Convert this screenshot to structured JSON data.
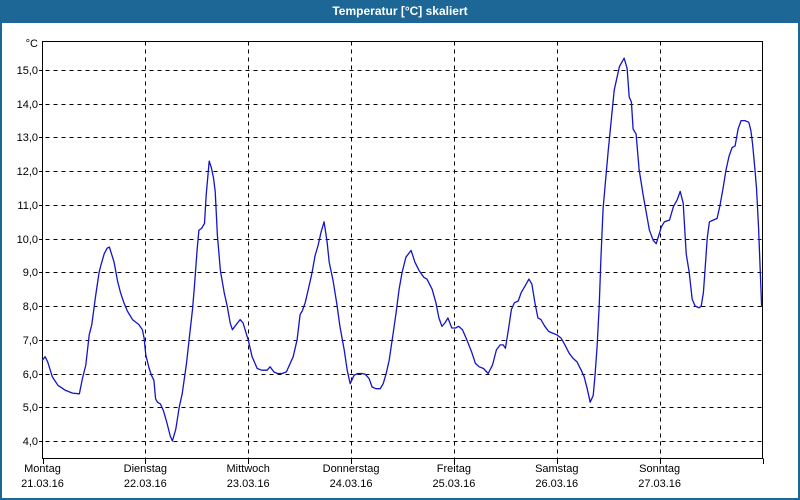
{
  "window": {
    "title": "Temperatur [°C] skaliert",
    "frame_color": "#1c6796",
    "title_text_color": "#ffffff",
    "background_color": "#ffffff"
  },
  "chart_data": {
    "type": "line",
    "title": "Temperatur [°C] skaliert",
    "ylabel": "°C",
    "unit_label": "°C",
    "ylim": [
      4.0,
      15.0
    ],
    "y_tick_step": 1.0,
    "xlim_hours": [
      0,
      168
    ],
    "grid": "dashed-black",
    "legend": "none",
    "line_color": "#1414c8",
    "grid_color": "#000000",
    "text_color": "#000000",
    "y_ticks": [
      {
        "v": 15,
        "label": "15,0"
      },
      {
        "v": 14,
        "label": "14,0"
      },
      {
        "v": 13,
        "label": "13,0"
      },
      {
        "v": 12,
        "label": "12,0"
      },
      {
        "v": 11,
        "label": "11,0"
      },
      {
        "v": 10,
        "label": "10,0"
      },
      {
        "v": 9,
        "label": "9,0"
      },
      {
        "v": 8,
        "label": "8,0"
      },
      {
        "v": 7,
        "label": "7,0"
      },
      {
        "v": 6,
        "label": "6,0"
      },
      {
        "v": 5,
        "label": "5,0"
      },
      {
        "v": 4,
        "label": "4,0"
      }
    ],
    "x_days": [
      {
        "name": "Montag",
        "date": "21.03.16"
      },
      {
        "name": "Dienstag",
        "date": "22.03.16"
      },
      {
        "name": "Mittwoch",
        "date": "23.03.16"
      },
      {
        "name": "Donnerstag",
        "date": "24.03.16"
      },
      {
        "name": "Freitag",
        "date": "25.03.16"
      },
      {
        "name": "Samstag",
        "date": "26.03.16"
      },
      {
        "name": "Sonntag",
        "date": "27.03.16"
      }
    ],
    "series": [
      {
        "name": "Temperatur [°C]",
        "points": [
          [
            0,
            6.4
          ],
          [
            0.6,
            6.5
          ],
          [
            1.2,
            6.35
          ],
          [
            2.3,
            5.9
          ],
          [
            3.6,
            5.65
          ],
          [
            5.4,
            5.5
          ],
          [
            7,
            5.42
          ],
          [
            8.6,
            5.4
          ],
          [
            9.3,
            5.85
          ],
          [
            10.1,
            6.25
          ],
          [
            10.5,
            6.7
          ],
          [
            10.9,
            7.15
          ],
          [
            11.5,
            7.45
          ],
          [
            12.4,
            8.3
          ],
          [
            13.2,
            9.0
          ],
          [
            13.6,
            9.2
          ],
          [
            14.4,
            9.55
          ],
          [
            15.1,
            9.72
          ],
          [
            15.6,
            9.75
          ],
          [
            16.7,
            9.3
          ],
          [
            17.5,
            8.75
          ],
          [
            18.2,
            8.4
          ],
          [
            19,
            8.1
          ],
          [
            19.8,
            7.85
          ],
          [
            21,
            7.6
          ],
          [
            22.5,
            7.45
          ],
          [
            23.3,
            7.3
          ],
          [
            23.7,
            7.05
          ],
          [
            24.1,
            6.55
          ],
          [
            24.9,
            6.15
          ],
          [
            25.4,
            5.95
          ],
          [
            26,
            5.8
          ],
          [
            26.4,
            5.25
          ],
          [
            26.8,
            5.15
          ],
          [
            27.5,
            5.1
          ],
          [
            28.2,
            4.9
          ],
          [
            29,
            4.55
          ],
          [
            29.8,
            4.15
          ],
          [
            30.3,
            4.0
          ],
          [
            31.1,
            4.35
          ],
          [
            31.9,
            5.0
          ],
          [
            32.6,
            5.4
          ],
          [
            33.6,
            6.3
          ],
          [
            34.2,
            7.0
          ],
          [
            35,
            7.9
          ],
          [
            35.4,
            8.5
          ],
          [
            36.1,
            9.7
          ],
          [
            36.5,
            10.25
          ],
          [
            37.1,
            10.3
          ],
          [
            37.8,
            10.45
          ],
          [
            38.2,
            11.3
          ],
          [
            38.9,
            12.3
          ],
          [
            39.4,
            12.1
          ],
          [
            39.9,
            11.8
          ],
          [
            40.3,
            11.4
          ],
          [
            40.8,
            10.1
          ],
          [
            41.5,
            9.05
          ],
          [
            42.4,
            8.4
          ],
          [
            43.1,
            8.0
          ],
          [
            43.8,
            7.5
          ],
          [
            44.3,
            7.3
          ],
          [
            45.2,
            7.45
          ],
          [
            46.1,
            7.6
          ],
          [
            46.8,
            7.5
          ],
          [
            47.5,
            7.2
          ],
          [
            48,
            7.0
          ],
          [
            48.9,
            6.5
          ],
          [
            50.1,
            6.15
          ],
          [
            51.2,
            6.1
          ],
          [
            52.4,
            6.1
          ],
          [
            53.1,
            6.2
          ],
          [
            54,
            6.05
          ],
          [
            54.8,
            6.0
          ],
          [
            55.9,
            6.0
          ],
          [
            56.9,
            6.05
          ],
          [
            57.8,
            6.3
          ],
          [
            58.5,
            6.5
          ],
          [
            59.4,
            7.0
          ],
          [
            60.1,
            7.75
          ],
          [
            60.6,
            7.85
          ],
          [
            61.3,
            8.1
          ],
          [
            62.2,
            8.6
          ],
          [
            62.9,
            9.0
          ],
          [
            63.6,
            9.5
          ],
          [
            64.3,
            9.8
          ],
          [
            65,
            10.2
          ],
          [
            65.7,
            10.5
          ],
          [
            66.4,
            9.9
          ],
          [
            66.9,
            9.3
          ],
          [
            67.8,
            8.75
          ],
          [
            68.7,
            8.05
          ],
          [
            69.4,
            7.4
          ],
          [
            70.4,
            6.7
          ],
          [
            71.1,
            6.1
          ],
          [
            71.8,
            5.7
          ],
          [
            72.7,
            5.95
          ],
          [
            73.6,
            6.0
          ],
          [
            74.6,
            6.0
          ],
          [
            75.3,
            5.98
          ],
          [
            76.2,
            5.85
          ],
          [
            76.9,
            5.6
          ],
          [
            77.8,
            5.55
          ],
          [
            78.8,
            5.55
          ],
          [
            79.5,
            5.7
          ],
          [
            80.2,
            6.0
          ],
          [
            80.9,
            6.4
          ],
          [
            81.6,
            7.0
          ],
          [
            82.5,
            7.8
          ],
          [
            83.2,
            8.5
          ],
          [
            83.9,
            9.0
          ],
          [
            84.8,
            9.45
          ],
          [
            86,
            9.65
          ],
          [
            86.9,
            9.3
          ],
          [
            87.9,
            9.05
          ],
          [
            89,
            8.85
          ],
          [
            89.7,
            8.8
          ],
          [
            90.9,
            8.5
          ],
          [
            91.8,
            8.1
          ],
          [
            92.5,
            7.65
          ],
          [
            93.2,
            7.4
          ],
          [
            93.9,
            7.5
          ],
          [
            94.6,
            7.65
          ],
          [
            95.5,
            7.35
          ],
          [
            96.4,
            7.35
          ],
          [
            97.1,
            7.4
          ],
          [
            98,
            7.3
          ],
          [
            99,
            7.0
          ],
          [
            100.1,
            6.65
          ],
          [
            101,
            6.3
          ],
          [
            101.9,
            6.2
          ],
          [
            102.9,
            6.15
          ],
          [
            104,
            6.0
          ],
          [
            105,
            6.25
          ],
          [
            105.9,
            6.7
          ],
          [
            106.8,
            6.85
          ],
          [
            107.5,
            6.85
          ],
          [
            108,
            6.75
          ],
          [
            108.7,
            7.3
          ],
          [
            109.4,
            7.9
          ],
          [
            110.1,
            8.1
          ],
          [
            111,
            8.15
          ],
          [
            111.7,
            8.4
          ],
          [
            112.6,
            8.6
          ],
          [
            113.5,
            8.8
          ],
          [
            114.2,
            8.65
          ],
          [
            114.9,
            8.1
          ],
          [
            115.6,
            7.65
          ],
          [
            116.3,
            7.6
          ],
          [
            117.2,
            7.4
          ],
          [
            118.1,
            7.25
          ],
          [
            119,
            7.2
          ],
          [
            120,
            7.15
          ],
          [
            121,
            7.05
          ],
          [
            121.9,
            6.85
          ],
          [
            122.9,
            6.6
          ],
          [
            123.8,
            6.45
          ],
          [
            124.7,
            6.35
          ],
          [
            125.7,
            6.1
          ],
          [
            126.4,
            5.9
          ],
          [
            127.1,
            5.55
          ],
          [
            127.8,
            5.15
          ],
          [
            128.5,
            5.35
          ],
          [
            128.9,
            5.9
          ],
          [
            129.4,
            6.8
          ],
          [
            129.9,
            8.0
          ],
          [
            130.3,
            9.4
          ],
          [
            130.8,
            10.9
          ],
          [
            131.3,
            11.6
          ],
          [
            132,
            12.6
          ],
          [
            132.7,
            13.5
          ],
          [
            133.4,
            14.4
          ],
          [
            134.6,
            15.1
          ],
          [
            135.7,
            15.35
          ],
          [
            136.4,
            15.05
          ],
          [
            136.9,
            14.2
          ],
          [
            137.4,
            14.05
          ],
          [
            137.8,
            13.25
          ],
          [
            138.5,
            13.1
          ],
          [
            139.2,
            12.05
          ],
          [
            140.2,
            11.25
          ],
          [
            140.9,
            10.75
          ],
          [
            141.6,
            10.25
          ],
          [
            142.5,
            9.95
          ],
          [
            143.2,
            9.85
          ],
          [
            144.4,
            10.35
          ],
          [
            145.1,
            10.5
          ],
          [
            146.3,
            10.55
          ],
          [
            147.2,
            10.95
          ],
          [
            148.1,
            11.15
          ],
          [
            148.8,
            11.4
          ],
          [
            149.5,
            11.05
          ],
          [
            150.2,
            9.55
          ],
          [
            150.9,
            9.0
          ],
          [
            151.6,
            8.2
          ],
          [
            152.3,
            8.0
          ],
          [
            153.2,
            7.95
          ],
          [
            153.7,
            8.0
          ],
          [
            154.2,
            8.4
          ],
          [
            154.6,
            9.1
          ],
          [
            155.1,
            10.0
          ],
          [
            155.6,
            10.5
          ],
          [
            156.5,
            10.55
          ],
          [
            157.4,
            10.6
          ],
          [
            158.1,
            11.0
          ],
          [
            158.8,
            11.5
          ],
          [
            159.5,
            12.05
          ],
          [
            160.2,
            12.45
          ],
          [
            160.9,
            12.7
          ],
          [
            161.6,
            12.75
          ],
          [
            162.3,
            13.25
          ],
          [
            163,
            13.5
          ],
          [
            163.9,
            13.5
          ],
          [
            164.8,
            13.45
          ],
          [
            165.3,
            13.2
          ],
          [
            165.7,
            12.8
          ],
          [
            166.2,
            12.1
          ],
          [
            166.6,
            11.5
          ],
          [
            167.1,
            10.3
          ],
          [
            167.4,
            9.3
          ],
          [
            167.8,
            8.0
          ]
        ]
      }
    ]
  }
}
